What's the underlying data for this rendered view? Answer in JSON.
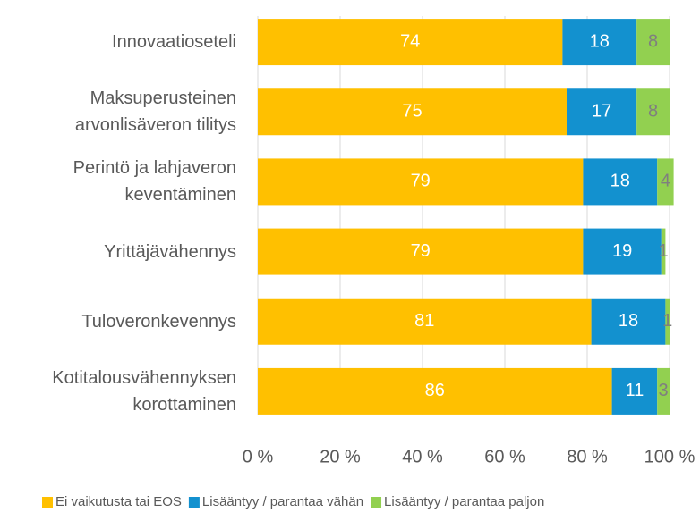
{
  "chart_data": {
    "type": "stacked-barh",
    "categories": [
      "Innovaatioseteli",
      "Maksuperusteinen\narvonlisäveron tilitys",
      "Perintö ja lahjaveron\nkeventäminen",
      "Yrittäjävähennys",
      "Tuloveronkevennys",
      "Kotitalousvähennyksen\nkorottaminen"
    ],
    "series": [
      {
        "name": "Ei vaikutusta tai EOS",
        "color": "#FFC000",
        "label_color": "#ffffff",
        "values": [
          74,
          75,
          79,
          79,
          81,
          86
        ]
      },
      {
        "name": "Lisääntyy / parantaa vähän",
        "color": "#1391CF",
        "label_color": "#ffffff",
        "values": [
          18,
          17,
          18,
          19,
          18,
          11
        ]
      },
      {
        "name": "Lisääntyy / parantaa paljon",
        "color": "#92D050",
        "label_color": "#7f7f7f",
        "values": [
          8,
          8,
          4,
          1,
          1,
          3
        ]
      }
    ],
    "xlim": [
      0,
      100
    ],
    "xticks": [
      {
        "value": 0,
        "label": "0 %"
      },
      {
        "value": 20,
        "label": "20 %"
      },
      {
        "value": 40,
        "label": "40 %"
      },
      {
        "value": 60,
        "label": "60 %"
      },
      {
        "value": 80,
        "label": "80 %"
      },
      {
        "value": 100,
        "label": "100 %"
      }
    ],
    "grid": true,
    "legend": "bottom"
  }
}
